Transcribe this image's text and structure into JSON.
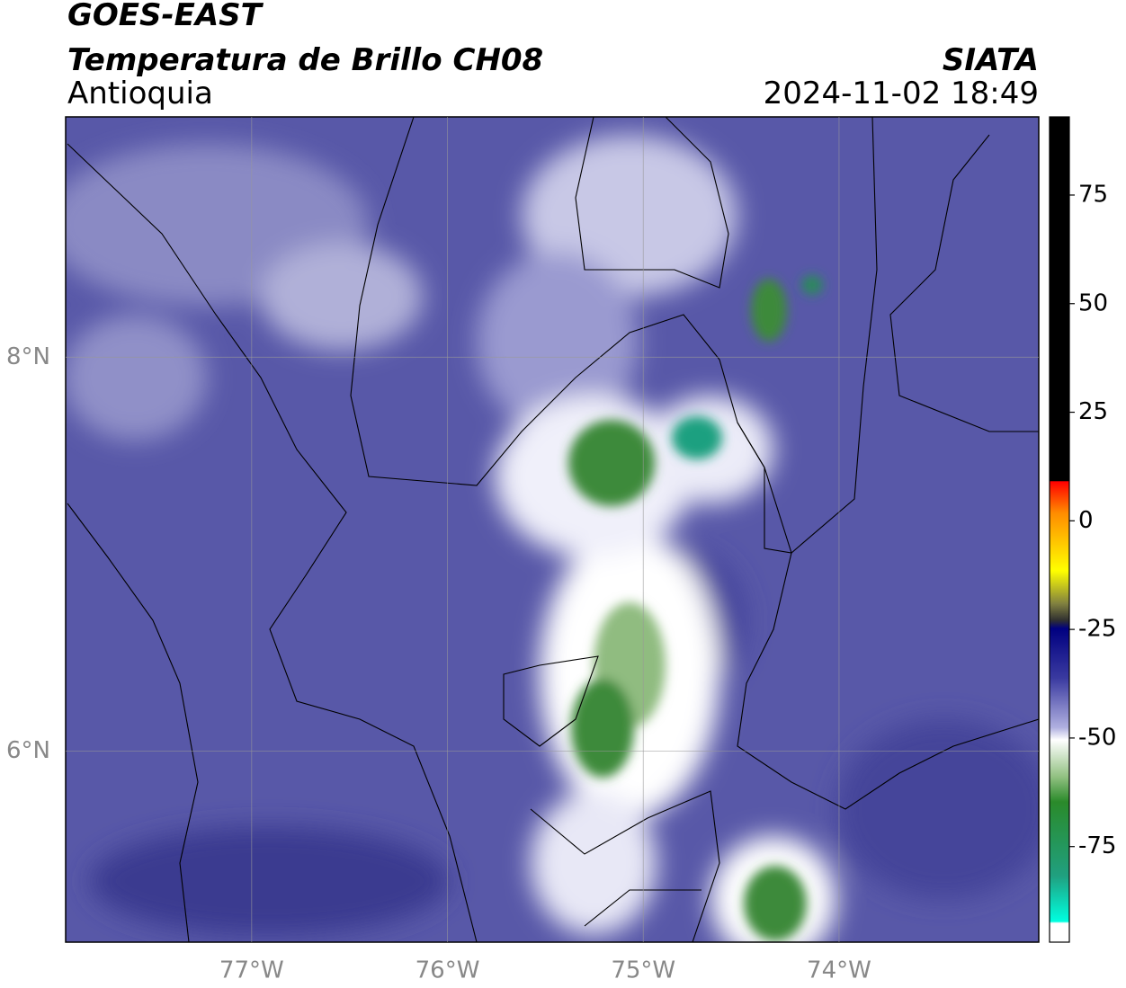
{
  "header": {
    "title": "GOES-EAST",
    "subtitle": "Temperatura de Brillo CH08",
    "region": "Antioquia",
    "source": "SIATA",
    "datetime": "2024-11-02 18:49"
  },
  "map": {
    "xlim": [
      -77.95,
      -72.98
    ],
    "ylim": [
      5.03,
      9.22
    ],
    "xticks": [
      {
        "value": -77,
        "label": "77°W"
      },
      {
        "value": -76,
        "label": "76°W"
      },
      {
        "value": -75,
        "label": "75°W"
      },
      {
        "value": -74,
        "label": "74°W"
      }
    ],
    "yticks": [
      {
        "value": 6,
        "label": "6°N"
      },
      {
        "value": 8,
        "label": "8°N"
      }
    ],
    "grid": true
  },
  "colorbar": {
    "lim": [
      -97,
      93
    ],
    "ticks": [
      -75,
      -50,
      -25,
      0,
      25,
      50,
      75
    ]
  }
}
